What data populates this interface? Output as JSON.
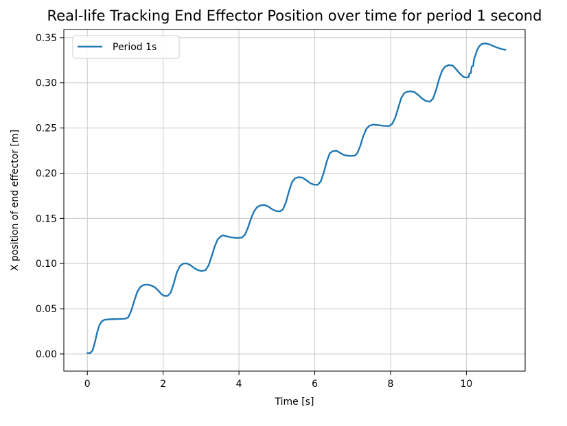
{
  "figure": {
    "background": "#ffffff"
  },
  "chart_data": {
    "type": "line",
    "title": "Real-life Tracking End Effector Position over time for period 1 second",
    "xlabel": "Time [s]",
    "ylabel": "X position of end effector [m]",
    "xlim": [
      -0.62,
      11.55
    ],
    "ylim": [
      -0.019,
      0.359
    ],
    "grid": true,
    "legend_position": "upper left",
    "xticks": {
      "values": [
        0,
        2,
        4,
        6,
        8,
        10
      ],
      "labels": [
        "0",
        "2",
        "4",
        "6",
        "8",
        "10"
      ]
    },
    "yticks": {
      "values": [
        0.0,
        0.05,
        0.1,
        0.15,
        0.2,
        0.25,
        0.3,
        0.35
      ],
      "labels": [
        "0.00",
        "0.05",
        "0.10",
        "0.15",
        "0.20",
        "0.25",
        "0.30",
        "0.35"
      ]
    },
    "colors": {
      "line": "#1f77b4",
      "grid": "#c9c9c9",
      "spine": "#000000",
      "text": "#000000",
      "legend_border": "#cccccc",
      "legend_bg": "#ffffff"
    },
    "series": [
      {
        "name": "Period 1s",
        "color": "#1f77b4",
        "x": [
          0.0,
          0.08,
          0.14,
          0.2,
          0.26,
          0.32,
          0.38,
          0.45,
          0.6,
          0.8,
          1.0,
          1.08,
          1.16,
          1.24,
          1.32,
          1.4,
          1.48,
          1.58,
          1.68,
          1.78,
          1.88,
          1.96,
          2.04,
          2.12,
          2.2,
          2.28,
          2.36,
          2.44,
          2.52,
          2.62,
          2.72,
          2.82,
          2.92,
          3.02,
          3.12,
          3.2,
          3.28,
          3.36,
          3.44,
          3.52,
          3.58,
          3.66,
          3.8,
          3.95,
          4.08,
          4.16,
          4.24,
          4.32,
          4.4,
          4.48,
          4.58,
          4.68,
          4.78,
          4.88,
          4.98,
          5.08,
          5.16,
          5.24,
          5.32,
          5.4,
          5.48,
          5.58,
          5.68,
          5.78,
          5.88,
          5.98,
          6.08,
          6.16,
          6.24,
          6.32,
          6.4,
          6.48,
          6.58,
          6.68,
          6.78,
          6.9,
          7.05,
          7.12,
          7.2,
          7.28,
          7.36,
          7.44,
          7.54,
          7.68,
          7.82,
          7.96,
          8.04,
          8.12,
          8.2,
          8.28,
          8.36,
          8.44,
          8.54,
          8.64,
          8.74,
          8.84,
          8.94,
          9.04,
          9.12,
          9.2,
          9.28,
          9.36,
          9.44,
          9.54,
          9.64,
          9.72,
          9.82,
          9.92,
          10.0,
          10.06,
          10.08,
          10.12,
          10.14,
          10.18,
          10.2,
          10.24,
          10.28,
          10.34,
          10.4,
          10.48,
          10.56,
          10.64,
          10.72,
          10.8,
          10.88,
          10.96,
          11.03
        ],
        "y": [
          0.001,
          0.001,
          0.004,
          0.013,
          0.024,
          0.032,
          0.036,
          0.0378,
          0.0384,
          0.0386,
          0.039,
          0.0405,
          0.048,
          0.059,
          0.069,
          0.0742,
          0.0763,
          0.0768,
          0.0758,
          0.0738,
          0.0698,
          0.066,
          0.0642,
          0.0643,
          0.068,
          0.078,
          0.09,
          0.0972,
          0.0998,
          0.1003,
          0.0982,
          0.095,
          0.0927,
          0.0918,
          0.0928,
          0.098,
          0.108,
          0.119,
          0.1268,
          0.13,
          0.1313,
          0.1303,
          0.129,
          0.1284,
          0.1288,
          0.132,
          0.14,
          0.15,
          0.158,
          0.1625,
          0.1645,
          0.1648,
          0.163,
          0.16,
          0.1582,
          0.1577,
          0.16,
          0.168,
          0.18,
          0.19,
          0.1944,
          0.1956,
          0.195,
          0.1922,
          0.189,
          0.1873,
          0.1872,
          0.191,
          0.201,
          0.2135,
          0.2223,
          0.2245,
          0.2247,
          0.2222,
          0.22,
          0.2192,
          0.2193,
          0.222,
          0.23,
          0.241,
          0.249,
          0.2525,
          0.2537,
          0.2532,
          0.2524,
          0.2522,
          0.2545,
          0.261,
          0.272,
          0.283,
          0.2885,
          0.2902,
          0.2906,
          0.2895,
          0.2862,
          0.2822,
          0.2798,
          0.2792,
          0.2825,
          0.292,
          0.304,
          0.3135,
          0.318,
          0.3197,
          0.319,
          0.3155,
          0.3105,
          0.3066,
          0.3058,
          0.3062,
          0.3105,
          0.3108,
          0.318,
          0.3185,
          0.326,
          0.3305,
          0.336,
          0.3405,
          0.3428,
          0.3437,
          0.343,
          0.342,
          0.3405,
          0.3392,
          0.338,
          0.3371,
          0.3366
        ]
      }
    ]
  }
}
